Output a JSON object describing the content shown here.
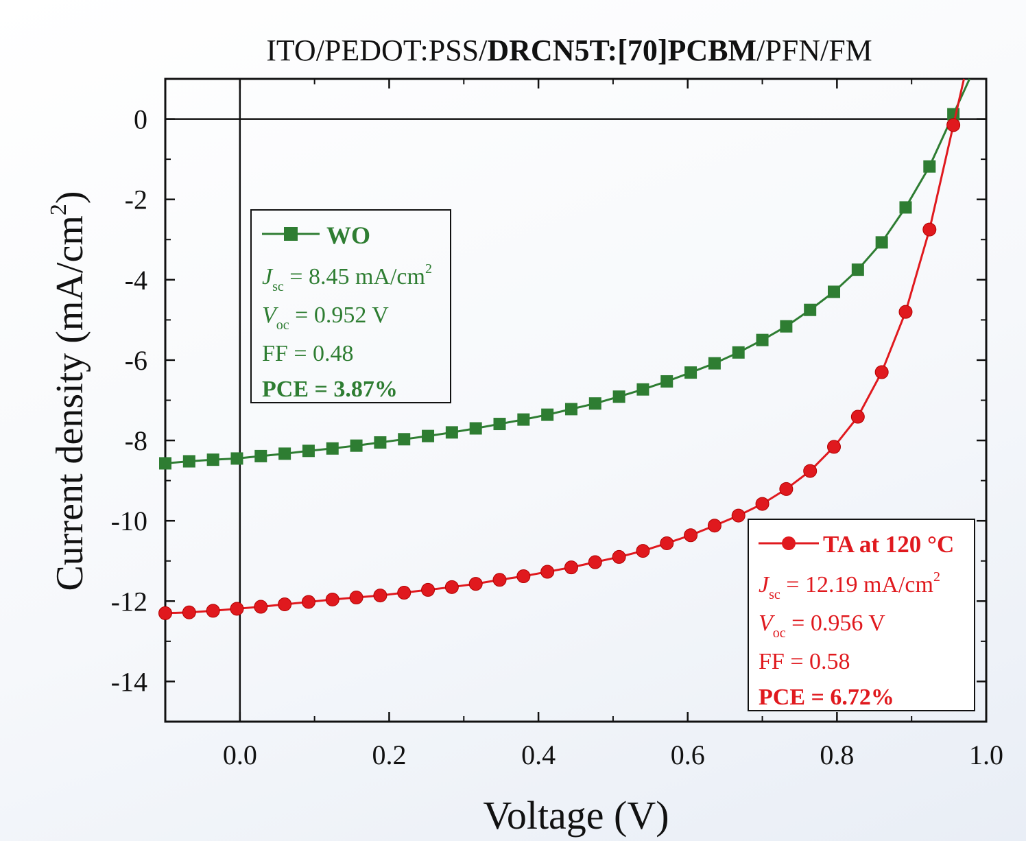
{
  "chart_data": {
    "type": "line",
    "title": {
      "prefix": "ITO/PEDOT:PSS/",
      "bold": "DRCN5T:[70]PCBM",
      "suffix": "/PFN/FM"
    },
    "xlabel": "Voltage (V)",
    "ylabel": "Current density (mA/cm",
    "ylabel_sup": "2",
    "ylabel_end": ")",
    "xlim": [
      -0.1,
      1.0
    ],
    "ylim": [
      -15,
      1
    ],
    "x_ticks": [
      0.0,
      0.2,
      0.4,
      0.6,
      0.8,
      1.0
    ],
    "x_tick_labels": [
      "0.0",
      "0.2",
      "0.4",
      "0.6",
      "0.8",
      "1.0"
    ],
    "y_ticks": [
      0,
      -2,
      -4,
      -6,
      -8,
      -10,
      -12,
      -14
    ],
    "y_tick_labels": [
      "0",
      "-2",
      "-4",
      "-6",
      "-8",
      "-10",
      "-12",
      "-14"
    ],
    "grid": false,
    "zero_lines": true,
    "series": [
      {
        "name": "WO",
        "color": "#2e7d32",
        "marker": "square",
        "x": [
          -0.1,
          -0.068,
          -0.036,
          -0.004,
          0.028,
          0.06,
          0.092,
          0.124,
          0.156,
          0.188,
          0.22,
          0.252,
          0.284,
          0.316,
          0.348,
          0.38,
          0.412,
          0.444,
          0.476,
          0.508,
          0.54,
          0.572,
          0.604,
          0.636,
          0.668,
          0.7,
          0.732,
          0.764,
          0.796,
          0.828,
          0.86,
          0.892,
          0.924,
          0.956
        ],
        "y": [
          -8.57,
          -8.52,
          -8.48,
          -8.45,
          -8.39,
          -8.33,
          -8.26,
          -8.2,
          -8.13,
          -8.05,
          -7.97,
          -7.89,
          -7.8,
          -7.7,
          -7.59,
          -7.48,
          -7.36,
          -7.22,
          -7.08,
          -6.91,
          -6.73,
          -6.53,
          -6.31,
          -6.08,
          -5.81,
          -5.5,
          -5.16,
          -4.75,
          -4.3,
          -3.75,
          -3.07,
          -2.2,
          -1.18,
          0.12
        ],
        "legend": {
          "stats": [
            {
              "sym": "J",
              "sub": "sc",
              "text": " = 8.45 mA/cm",
              "sup": "2"
            },
            {
              "sym": "V",
              "sub": "oc",
              "text": " = 0.952 V",
              "sup": ""
            },
            {
              "sym": "",
              "sub": "",
              "text": "FF = 0.48",
              "sup": ""
            }
          ],
          "pce": "PCE = 3.87%",
          "position": "top-left"
        }
      },
      {
        "name": "TA at 120 °C",
        "color": "#e0191e",
        "marker": "circle",
        "x": [
          -0.1,
          -0.068,
          -0.036,
          -0.004,
          0.028,
          0.06,
          0.092,
          0.124,
          0.156,
          0.188,
          0.22,
          0.252,
          0.284,
          0.316,
          0.348,
          0.38,
          0.412,
          0.444,
          0.476,
          0.508,
          0.54,
          0.572,
          0.604,
          0.636,
          0.668,
          0.7,
          0.732,
          0.764,
          0.796,
          0.828,
          0.86,
          0.892,
          0.924,
          0.956
        ],
        "y": [
          -12.3,
          -12.28,
          -12.24,
          -12.19,
          -12.14,
          -12.08,
          -12.02,
          -11.96,
          -11.91,
          -11.86,
          -11.79,
          -11.72,
          -11.65,
          -11.57,
          -11.47,
          -11.38,
          -11.27,
          -11.16,
          -11.03,
          -10.9,
          -10.75,
          -10.56,
          -10.36,
          -10.12,
          -9.87,
          -9.58,
          -9.21,
          -8.76,
          -8.16,
          -7.41,
          -6.3,
          -4.8,
          -2.75,
          -0.15
        ],
        "legend": {
          "stats": [
            {
              "sym": "J",
              "sub": "sc",
              "text": " = 12.19 mA/cm",
              "sup": "2"
            },
            {
              "sym": "V",
              "sub": "oc",
              "text": " = 0.956 V",
              "sup": ""
            },
            {
              "sym": "",
              "sub": "",
              "text": "FF = 0.58",
              "sup": ""
            }
          ],
          "pce": "PCE = 6.72%",
          "position": "bottom-right"
        }
      }
    ]
  }
}
